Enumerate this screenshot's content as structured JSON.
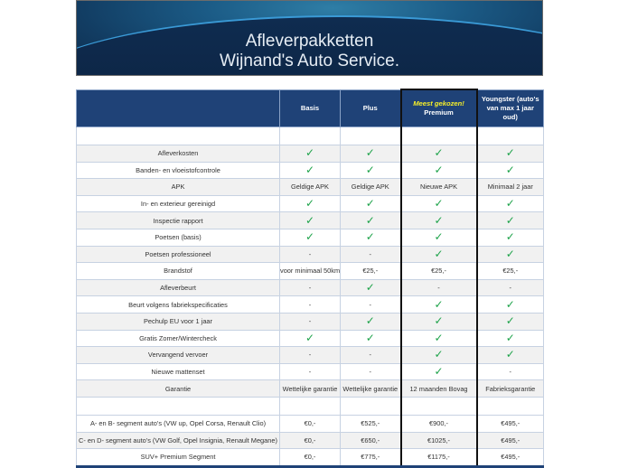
{
  "banner": {
    "title_line1": "Afleverpakketten",
    "title_line2": "Wijnand's Auto Service."
  },
  "colors": {
    "header": "#1f4277",
    "check": "#1ea34a",
    "highlight_text": "#f5ee2a"
  },
  "table": {
    "headers": [
      "",
      "Basis",
      "Plus",
      "Premium",
      "Youngster (auto's van max 1 jaar oud)"
    ],
    "premium_tag": "Meest gekozen!",
    "features": [
      [
        "Afleverkosten",
        "check",
        "check",
        "check",
        "check"
      ],
      [
        "Banden- en vloeistofcontrole",
        "check",
        "check",
        "check",
        "check"
      ],
      [
        "APK",
        "Geldige APK",
        "Geldige APK",
        "Nieuwe APK",
        "Minimaal 2 jaar"
      ],
      [
        "In- en exterieur gereinigd",
        "check",
        "check",
        "check",
        "check"
      ],
      [
        "Inspectie rapport",
        "check",
        "check",
        "check",
        "check"
      ],
      [
        "Poetsen (basis)",
        "check",
        "check",
        "check",
        "check"
      ],
      [
        "Poetsen professioneel",
        "-",
        "-",
        "check",
        "check"
      ],
      [
        "Brandstof",
        "voor minimaal 50km",
        "€25,-",
        "€25,-",
        "€25,-"
      ],
      [
        "Afleverbeurt",
        "-",
        "check",
        "-",
        "-"
      ],
      [
        "Beurt volgens fabriekspecificaties",
        "-",
        "-",
        "check",
        "check"
      ],
      [
        "Pechulp EU voor 1 jaar",
        "-",
        "check",
        "check",
        "check"
      ],
      [
        "Gratis Zomer/Wintercheck",
        "check",
        "check",
        "check",
        "check"
      ],
      [
        "Vervangend vervoer",
        "-",
        "-",
        "check",
        "check"
      ],
      [
        "Nieuwe mattenset",
        "-",
        "-",
        "check",
        "-"
      ],
      [
        "Garantie",
        "Wettelijke garantie",
        "Wettelijke garantie",
        "12 maanden Bovag",
        "Fabrieksgarantie"
      ]
    ],
    "prices": [
      [
        "A- en B- segment auto's (VW up, Opel Corsa, Renault Clio)",
        "€0,-",
        "€525,-",
        "€900,-",
        "€495,-"
      ],
      [
        "C- en D- segment auto's (VW Golf, Opel Insignia, Renault Megane)",
        "€0,-",
        "€650,-",
        "€1025,-",
        "€495,-"
      ],
      [
        "SUV+ Premium Segment",
        "€0,-",
        "€775,-",
        "€1175,-",
        "€495,-"
      ]
    ]
  }
}
